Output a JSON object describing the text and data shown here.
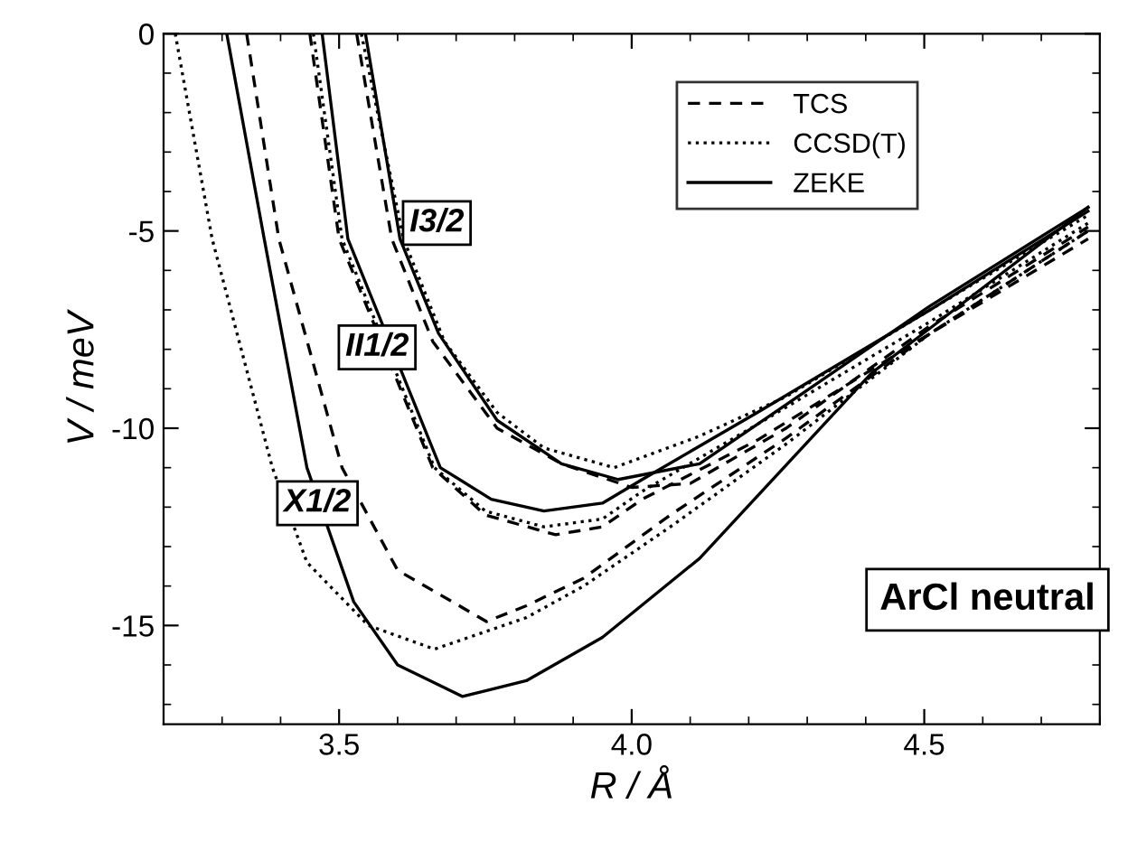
{
  "chart_data": {
    "type": "line",
    "xlabel": "R / Å",
    "ylabel": "V / meV",
    "xlim": [
      3.2,
      4.8
    ],
    "xticks": [
      {
        "value": 3.5,
        "label": "3.5"
      },
      {
        "value": 4.0,
        "label": "4.0"
      },
      {
        "value": 4.5,
        "label": "4.5"
      }
    ],
    "ylim": [
      -17.5,
      0
    ],
    "yticks": [
      {
        "value": 0,
        "label": "0"
      },
      {
        "value": -5,
        "label": "-5"
      },
      {
        "value": -10,
        "label": "-10"
      },
      {
        "value": -15,
        "label": "-15"
      }
    ],
    "grid": false,
    "legend": "top right",
    "marker": "none",
    "series": [
      {
        "name": "TCS",
        "color": "#000000",
        "line_style": "dashed",
        "x": [
          3.342,
          3.397,
          3.505,
          3.6,
          3.752,
          3.82,
          3.918,
          4.066,
          4.264,
          4.51,
          4.78
        ],
        "values": [
          0,
          -5.2,
          -11.0,
          -13.6,
          -14.9,
          -14.5,
          -13.8,
          -12.2,
          -10.25,
          -7.6,
          -5.2
        ]
      },
      {
        "name": "CCSD(T)",
        "color": "#000000",
        "line_style": "dotted",
        "x": [
          3.22,
          3.283,
          3.386,
          3.445,
          3.55,
          3.663,
          3.82,
          3.918,
          4.066,
          4.264,
          4.51,
          4.78
        ],
        "values": [
          0,
          -5.2,
          -11.0,
          -13.4,
          -15.0,
          -15.6,
          -14.8,
          -14.0,
          -12.5,
          -10.4,
          -7.6,
          -5.0
        ]
      },
      {
        "name": "ZEKE",
        "color": "#000000",
        "line_style": "solid",
        "x": [
          3.308,
          3.372,
          3.445,
          3.525,
          3.6,
          3.711,
          3.82,
          3.95,
          4.116,
          4.41,
          4.78
        ],
        "values": [
          0,
          -5.2,
          -11.0,
          -14.4,
          -16.0,
          -16.8,
          -16.4,
          -15.3,
          -13.3,
          -8.6,
          -4.4
        ]
      },
      {
        "color": "#000000",
        "line_style": "dashed",
        "x": [
          3.45,
          3.5,
          3.66,
          3.75,
          3.87,
          3.95,
          4.018,
          4.215,
          4.51,
          4.78
        ],
        "values": [
          0,
          -5.2,
          -11.0,
          -12.2,
          -12.7,
          -12.5,
          -11.8,
          -10.3,
          -7.6,
          -5.0
        ]
      },
      {
        "color": "#000000",
        "line_style": "dotted",
        "x": [
          3.456,
          3.505,
          3.663,
          3.75,
          3.85,
          3.95,
          4.018,
          4.215,
          4.51,
          4.78
        ],
        "values": [
          0,
          -5.2,
          -11.0,
          -12.1,
          -12.5,
          -12.3,
          -11.6,
          -9.9,
          -7.3,
          -4.8
        ]
      },
      {
        "color": "#000000",
        "line_style": "solid",
        "x": [
          3.471,
          3.515,
          3.673,
          3.76,
          3.85,
          3.95,
          4.018,
          4.215,
          4.51,
          4.78
        ],
        "values": [
          0,
          -5.2,
          -11.0,
          -11.8,
          -12.1,
          -11.9,
          -11.3,
          -9.6,
          -7.0,
          -4.5
        ]
      },
      {
        "color": "#000000",
        "line_style": "dashed",
        "x": [
          3.53,
          3.59,
          3.66,
          3.77,
          3.88,
          4.0,
          4.1,
          4.264,
          4.51,
          4.78
        ],
        "values": [
          0,
          -5.2,
          -7.8,
          -10.0,
          -10.9,
          -11.5,
          -11.4,
          -10.0,
          -7.4,
          -4.9
        ]
      },
      {
        "color": "#000000",
        "line_style": "dotted",
        "x": [
          3.538,
          3.61,
          3.68,
          3.77,
          3.85,
          3.97,
          4.116,
          4.264,
          4.51,
          4.78
        ],
        "values": [
          0,
          -5.2,
          -7.8,
          -9.6,
          -10.5,
          -11.0,
          -10.2,
          -9.2,
          -7.0,
          -4.6
        ]
      },
      {
        "color": "#000000",
        "line_style": "solid",
        "x": [
          3.545,
          3.604,
          3.67,
          3.77,
          3.88,
          3.977,
          4.116,
          4.264,
          4.51,
          4.78
        ],
        "values": [
          0,
          -5.2,
          -7.6,
          -9.8,
          -10.9,
          -11.3,
          -10.9,
          -9.4,
          -6.9,
          -4.4
        ]
      }
    ],
    "annotations": [
      {
        "text": "X1/2",
        "x": 3.463,
        "y": -11.9
      },
      {
        "text": "II1/2",
        "x": 3.565,
        "y": -7.95
      },
      {
        "text": "I3/2",
        "x": 3.667,
        "y": -4.8
      },
      "ArCl neutral"
    ]
  }
}
